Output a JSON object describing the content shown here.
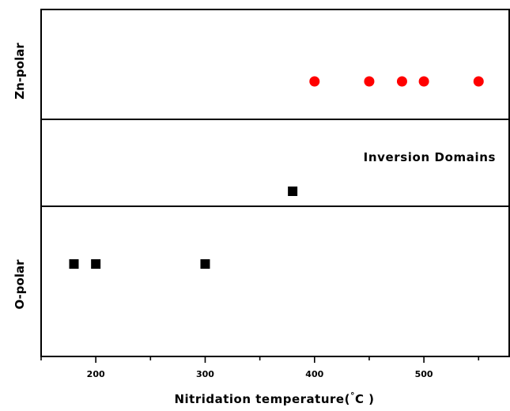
{
  "chart_data": {
    "type": "scatter",
    "title": "",
    "xlabel": "Nitridation temperature(°C)",
    "xlabel_main": "Nitridation temperature(",
    "xlabel_deg": "°",
    "xlabel_unit": "C )",
    "xlim": [
      150,
      578
    ],
    "xticks": [
      200,
      300,
      400,
      500
    ],
    "xtick_labels": [
      "200",
      "300",
      "400",
      "500"
    ],
    "x_minor_step": 50,
    "ylabel": "",
    "grid": false,
    "legend": "none",
    "regions": [
      {
        "id": "zn-polar",
        "label": "Zn-polar",
        "side_label": true
      },
      {
        "id": "inversion",
        "label": "Inversion Domains",
        "side_label": false
      },
      {
        "id": "o-polar",
        "label": "O-polar",
        "side_label": true
      }
    ],
    "series": [
      {
        "marker": "circle",
        "color": "#ff0000",
        "region": "zn-polar",
        "x": [
          400,
          450,
          480,
          500,
          550
        ]
      },
      {
        "marker": "square",
        "color": "#000000",
        "region": "inversion",
        "x": [
          380
        ]
      },
      {
        "marker": "square",
        "color": "#000000",
        "region": "o-polar",
        "x": [
          180,
          200,
          300
        ]
      }
    ]
  }
}
